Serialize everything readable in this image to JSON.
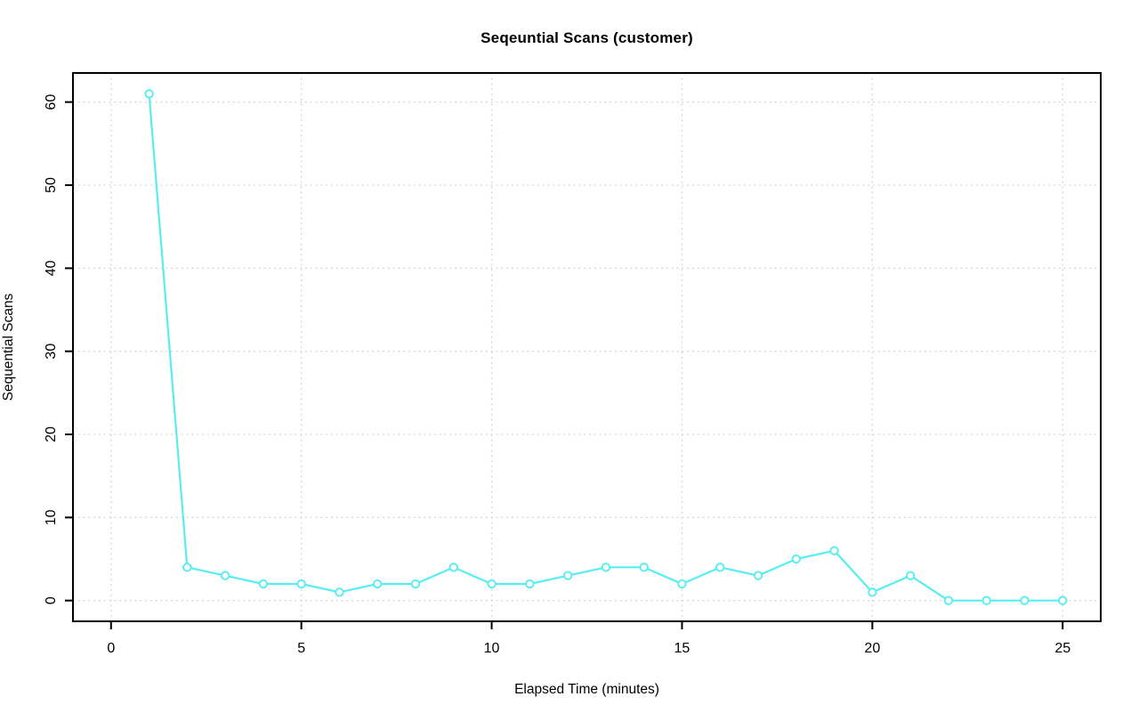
{
  "page": {
    "background_color": "#ffffff"
  },
  "chart_data": {
    "type": "line",
    "title": "Seqeuntial Scans (customer)",
    "xlabel": "Elapsed Time (minutes)",
    "ylabel": "Sequential Scans",
    "x": [
      1,
      2,
      3,
      4,
      5,
      6,
      7,
      8,
      9,
      10,
      11,
      12,
      13,
      14,
      15,
      16,
      17,
      18,
      19,
      20,
      21,
      22,
      23,
      24,
      25
    ],
    "y": [
      61,
      4,
      3,
      2,
      2,
      1,
      2,
      2,
      4,
      2,
      2,
      3,
      4,
      4,
      2,
      4,
      3,
      5,
      6,
      1,
      3,
      0,
      0,
      0,
      0
    ],
    "x_ticks": [
      0,
      5,
      10,
      15,
      20,
      25
    ],
    "y_ticks": [
      0,
      10,
      20,
      30,
      40,
      50,
      60
    ],
    "xlim": [
      -1,
      26
    ],
    "ylim": [
      -2.5,
      63.5
    ],
    "grid": true,
    "grid_style": "dotted",
    "legend_position": "none",
    "marker": "open-circle",
    "series_color": "#58EDF0",
    "grid_color": "#D3D3D3",
    "axis_color": "#000000",
    "tick_label_size": 16,
    "marker_fill": "#ffffff"
  }
}
